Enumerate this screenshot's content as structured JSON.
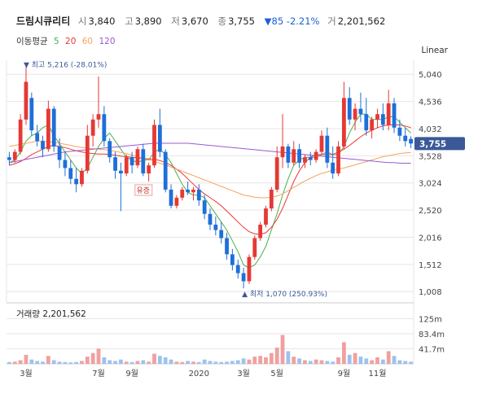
{
  "header": {
    "name": "드림시큐리티",
    "open_label": "시",
    "open": "3,840",
    "high_label": "고",
    "high": "3,890",
    "low_label": "저",
    "low": "3,670",
    "close_label": "종",
    "close": "3,755",
    "change": "▼85 -2.21%",
    "volume_label": "거",
    "volume": "2,201,562"
  },
  "ma_legend": {
    "label": "이동평균",
    "items": [
      {
        "period": "5",
        "color": "#4caf50"
      },
      {
        "period": "20",
        "color": "#e53935"
      },
      {
        "period": "60",
        "color": "#f4a460"
      },
      {
        "period": "120",
        "color": "#9b59d0"
      }
    ]
  },
  "scale_label": "Linear",
  "colors": {
    "up": "#e53935",
    "down": "#1e6fd9",
    "price_tag": "#3b5998",
    "grid": "#e6e6e6"
  },
  "chart_data": {
    "type": "candlestick",
    "ylim": [
      800,
      5300
    ],
    "y_ticks": [
      "5,040",
      "4,536",
      "4,032",
      "3,528",
      "3,024",
      "2,520",
      "2,016",
      "1,512",
      "1,008"
    ],
    "y_tick_values": [
      5040,
      4536,
      4032,
      3528,
      3024,
      2520,
      2016,
      1512,
      1008
    ],
    "x_labels": [
      "3월",
      "7월",
      "9월",
      "2020",
      "3월",
      "5월",
      "9월",
      "11월"
    ],
    "x_label_index": [
      3,
      16,
      22,
      34,
      42,
      48,
      60,
      66
    ],
    "current_price": "3,755",
    "current_value": 3755,
    "max_annotation": "최고 5,216 (-28.01%)",
    "max_value": 5216,
    "max_index": 3,
    "min_annotation": "최저 1,070 (250.93%)",
    "min_value": 1070,
    "min_index": 42,
    "event_label": "유증",
    "event_index": 24,
    "ohlc": [
      [
        3500,
        3600,
        3350,
        3450
      ],
      [
        3450,
        3650,
        3400,
        3600
      ],
      [
        3600,
        4300,
        3550,
        4200
      ],
      [
        4200,
        5216,
        4100,
        4900
      ],
      [
        4600,
        4700,
        3900,
        4000
      ],
      [
        3950,
        4100,
        3700,
        3800
      ],
      [
        3800,
        3900,
        3500,
        3650
      ],
      [
        3650,
        4550,
        3600,
        4400
      ],
      [
        4400,
        4450,
        3600,
        3700
      ],
      [
        3700,
        3850,
        3300,
        3450
      ],
      [
        3450,
        3600,
        3150,
        3300
      ],
      [
        3300,
        3450,
        3000,
        3100
      ],
      [
        3100,
        3300,
        2850,
        3000
      ],
      [
        3000,
        3300,
        2950,
        3250
      ],
      [
        3250,
        4100,
        3200,
        3900
      ],
      [
        3900,
        4300,
        3700,
        4200
      ],
      [
        4200,
        5000,
        4050,
        4300
      ],
      [
        4300,
        4450,
        3700,
        3800
      ],
      [
        3800,
        3850,
        3400,
        3500
      ],
      [
        3500,
        3600,
        3100,
        3250
      ],
      [
        3250,
        3400,
        2500,
        3200
      ],
      [
        3200,
        3550,
        3150,
        3500
      ],
      [
        3500,
        3600,
        3200,
        3350
      ],
      [
        3350,
        3700,
        3300,
        3650
      ],
      [
        3650,
        3750,
        3150,
        3200
      ],
      [
        3200,
        3400,
        3050,
        3350
      ],
      [
        3350,
        4200,
        3300,
        4100
      ],
      [
        4100,
        4400,
        3500,
        3600
      ],
      [
        3600,
        3650,
        2850,
        2900
      ],
      [
        2900,
        3000,
        2550,
        2600
      ],
      [
        2600,
        2800,
        2550,
        2750
      ],
      [
        2750,
        2950,
        2700,
        2900
      ],
      [
        2900,
        3050,
        2800,
        2850
      ],
      [
        2850,
        2950,
        2700,
        2900
      ],
      [
        2900,
        3000,
        2600,
        2700
      ],
      [
        2700,
        2800,
        2350,
        2450
      ],
      [
        2450,
        2550,
        2150,
        2250
      ],
      [
        2250,
        2400,
        2050,
        2150
      ],
      [
        2150,
        2300,
        1900,
        2000
      ],
      [
        2000,
        2100,
        1600,
        1700
      ],
      [
        1700,
        1800,
        1400,
        1500
      ],
      [
        1500,
        1600,
        1250,
        1350
      ],
      [
        1350,
        1450,
        1070,
        1200
      ],
      [
        1200,
        1700,
        1150,
        1650
      ],
      [
        1650,
        2050,
        1600,
        2000
      ],
      [
        2000,
        2300,
        1950,
        2250
      ],
      [
        2250,
        2600,
        2200,
        2550
      ],
      [
        2550,
        2950,
        2500,
        2900
      ],
      [
        2900,
        3700,
        2850,
        3500
      ],
      [
        3500,
        4300,
        3300,
        3700
      ],
      [
        3700,
        3750,
        3300,
        3400
      ],
      [
        3400,
        3800,
        3350,
        3650
      ],
      [
        3650,
        3750,
        3300,
        3400
      ],
      [
        3400,
        3550,
        3300,
        3500
      ],
      [
        3500,
        3600,
        3350,
        3450
      ],
      [
        3450,
        3650,
        3400,
        3600
      ],
      [
        3600,
        4000,
        3550,
        3900
      ],
      [
        3900,
        4050,
        3300,
        3400
      ],
      [
        3400,
        3700,
        3100,
        3200
      ],
      [
        3200,
        3800,
        3150,
        3700
      ],
      [
        3700,
        4900,
        3650,
        4600
      ],
      [
        4600,
        4800,
        4100,
        4200
      ],
      [
        4200,
        4500,
        4000,
        4400
      ],
      [
        4400,
        4700,
        4150,
        4300
      ],
      [
        4300,
        4600,
        3900,
        4000
      ],
      [
        4000,
        4250,
        3850,
        4200
      ],
      [
        4200,
        4400,
        4050,
        4300
      ],
      [
        4300,
        4500,
        4000,
        4100
      ],
      [
        4100,
        4750,
        4000,
        4500
      ],
      [
        4500,
        4600,
        3950,
        4050
      ],
      [
        4050,
        4200,
        3800,
        3900
      ],
      [
        3900,
        4050,
        3700,
        3800
      ],
      [
        3840,
        3890,
        3670,
        3755
      ]
    ],
    "ma": {
      "5": [
        3400,
        3450,
        3600,
        3800,
        3900,
        3950,
        4050,
        4100,
        3900,
        3750,
        3600,
        3450,
        3300,
        3200,
        3300,
        3500,
        3700,
        3850,
        3950,
        3800,
        3650,
        3500,
        3450,
        3400,
        3450,
        3450,
        3600,
        3650,
        3550,
        3400,
        3200,
        3000,
        2850,
        2800,
        2800,
        2750,
        2600,
        2450,
        2300,
        2150,
        1950,
        1750,
        1500,
        1450,
        1500,
        1650,
        1850,
        2150,
        2450,
        2800,
        3100,
        3350,
        3450,
        3500,
        3500,
        3500,
        3550,
        3600,
        3550,
        3550,
        3700,
        3950,
        4150,
        4300,
        4300,
        4200,
        4200,
        4200,
        4250,
        4250,
        4150,
        4050,
        3950
      ],
      "20": [
        3350,
        3380,
        3420,
        3480,
        3550,
        3600,
        3650,
        3700,
        3720,
        3700,
        3680,
        3650,
        3620,
        3600,
        3580,
        3570,
        3560,
        3560,
        3550,
        3540,
        3520,
        3510,
        3500,
        3490,
        3480,
        3470,
        3460,
        3440,
        3400,
        3350,
        3280,
        3200,
        3100,
        3000,
        2900,
        2820,
        2750,
        2680,
        2600,
        2500,
        2400,
        2300,
        2200,
        2120,
        2080,
        2070,
        2100,
        2200,
        2350,
        2550,
        2800,
        3050,
        3250,
        3400,
        3500,
        3550,
        3550,
        3550,
        3550,
        3600,
        3650,
        3720,
        3800,
        3880,
        3950,
        4000,
        4050,
        4080,
        4100,
        4100,
        4100,
        4080,
        4050
      ],
      "60": [
        3700,
        3720,
        3740,
        3760,
        3780,
        3800,
        3800,
        3790,
        3780,
        3760,
        3740,
        3720,
        3700,
        3680,
        3670,
        3660,
        3650,
        3640,
        3630,
        3610,
        3590,
        3570,
        3540,
        3510,
        3480,
        3450,
        3420,
        3390,
        3360,
        3320,
        3280,
        3240,
        3200,
        3160,
        3120,
        3080,
        3040,
        3000,
        2960,
        2920,
        2880,
        2840,
        2800,
        2780,
        2760,
        2750,
        2750,
        2760,
        2780,
        2820,
        2880,
        2940,
        3000,
        3060,
        3110,
        3160,
        3200,
        3230,
        3260,
        3280,
        3300,
        3330,
        3360,
        3390,
        3420,
        3450,
        3480,
        3510,
        3530,
        3550,
        3570,
        3580,
        3590
      ],
      "120": [
        3400,
        3420,
        3440,
        3460,
        3480,
        3500,
        3520,
        3540,
        3560,
        3580,
        3600,
        3610,
        3620,
        3630,
        3640,
        3650,
        3660,
        3670,
        3680,
        3690,
        3700,
        3710,
        3720,
        3730,
        3740,
        3750,
        3760,
        3760,
        3760,
        3760,
        3760,
        3760,
        3760,
        3750,
        3740,
        3730,
        3720,
        3710,
        3700,
        3690,
        3680,
        3670,
        3660,
        3650,
        3640,
        3630,
        3620,
        3610,
        3600,
        3590,
        3580,
        3570,
        3560,
        3550,
        3540,
        3530,
        3520,
        3510,
        3500,
        3490,
        3480,
        3470,
        3460,
        3450,
        3440,
        3430,
        3420,
        3410,
        3400,
        3400,
        3390,
        3390,
        3390
      ]
    },
    "volume_label": "거래량 2,201,562",
    "volume_ticks": [
      "125m",
      "83.4m",
      "41.7m"
    ],
    "volume_tick_values": [
      125,
      83.4,
      41.7
    ],
    "volume_max": 160,
    "volume": [
      5,
      6,
      10,
      25,
      12,
      8,
      6,
      22,
      10,
      6,
      5,
      4,
      5,
      8,
      20,
      30,
      42,
      18,
      10,
      8,
      12,
      6,
      5,
      8,
      10,
      6,
      28,
      22,
      18,
      12,
      6,
      5,
      8,
      6,
      5,
      12,
      8,
      6,
      5,
      6,
      8,
      10,
      15,
      12,
      20,
      22,
      18,
      30,
      45,
      80,
      35,
      20,
      15,
      10,
      8,
      12,
      10,
      8,
      6,
      18,
      60,
      25,
      30,
      20,
      15,
      10,
      18,
      12,
      35,
      22,
      10,
      8,
      6
    ]
  }
}
